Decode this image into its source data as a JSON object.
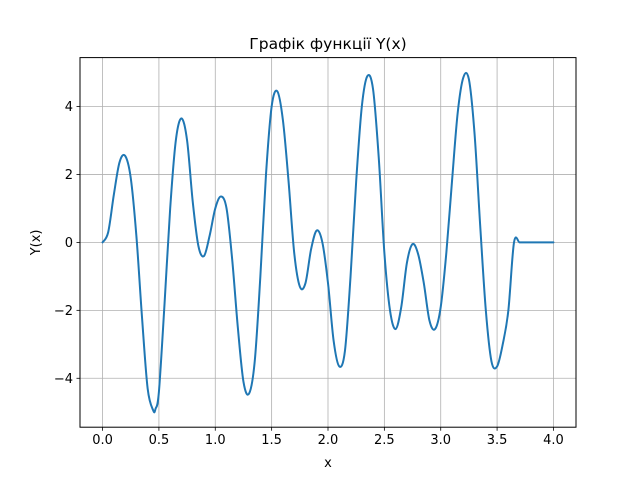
{
  "chart_data": {
    "type": "line",
    "title": "Графік функції Y(x)",
    "xlabel": "x",
    "ylabel": "Y(x)",
    "xlim": [
      -0.2,
      4.2
    ],
    "ylim": [
      -5.44,
      5.44
    ],
    "xticks": [
      0.0,
      0.5,
      1.0,
      1.5,
      2.0,
      2.5,
      3.0,
      3.5,
      4.0
    ],
    "xtick_labels": [
      "0.0",
      "0.5",
      "1.0",
      "1.5",
      "2.0",
      "2.5",
      "3.0",
      "3.5",
      "4.0"
    ],
    "yticks": [
      -4,
      -2,
      0,
      2,
      4
    ],
    "ytick_labels": [
      "−4",
      "−2",
      "0",
      "2",
      "4"
    ],
    "grid": true,
    "series": [
      {
        "color": "#1f77b4",
        "x": [
          0.0,
          0.05,
          0.1,
          0.15,
          0.2,
          0.25,
          0.3,
          0.35,
          0.4,
          0.45,
          0.47,
          0.5,
          0.55,
          0.6,
          0.65,
          0.7,
          0.75,
          0.8,
          0.85,
          0.9,
          0.95,
          1.0,
          1.05,
          1.1,
          1.15,
          1.2,
          1.25,
          1.3,
          1.35,
          1.4,
          1.45,
          1.5,
          1.55,
          1.6,
          1.65,
          1.7,
          1.75,
          1.8,
          1.85,
          1.9,
          1.95,
          2.0,
          2.05,
          2.1,
          2.15,
          2.2,
          2.25,
          2.3,
          2.35,
          2.4,
          2.45,
          2.5,
          2.55,
          2.6,
          2.65,
          2.7,
          2.75,
          2.8,
          2.85,
          2.9,
          2.95,
          3.0,
          3.05,
          3.1,
          3.15,
          3.2,
          3.25,
          3.3,
          3.35,
          3.4,
          3.45,
          3.5,
          3.55,
          3.6,
          3.65,
          3.7,
          3.75,
          3.8,
          3.85,
          3.9,
          3.95,
          4.0
        ],
        "y": [
          0.0,
          0.3,
          1.4,
          2.35,
          2.55,
          1.9,
          0.2,
          -2.2,
          -4.3,
          -4.95,
          -4.9,
          -4.4,
          -1.8,
          1.0,
          3.0,
          3.65,
          3.0,
          1.2,
          -0.1,
          -0.4,
          0.2,
          1.0,
          1.35,
          1.0,
          -0.5,
          -2.5,
          -4.1,
          -4.45,
          -3.5,
          -1.0,
          2.0,
          4.0,
          4.45,
          3.6,
          1.8,
          -0.3,
          -1.3,
          -1.2,
          -0.2,
          0.35,
          0.0,
          -1.2,
          -2.9,
          -3.65,
          -3.2,
          -1.0,
          1.8,
          4.0,
          4.9,
          4.5,
          2.5,
          -0.3,
          -2.0,
          -2.55,
          -1.9,
          -0.6,
          -0.05,
          -0.35,
          -1.2,
          -2.3,
          -2.55,
          -1.9,
          -0.3,
          1.8,
          3.8,
          4.85,
          4.8,
          3.2,
          0.5,
          -2.0,
          -3.5,
          -3.65,
          -3.0,
          -2.0,
          0.0,
          0.0,
          0.0,
          0.0,
          0.0,
          0.0,
          0.0,
          0.0
        ]
      }
    ]
  }
}
